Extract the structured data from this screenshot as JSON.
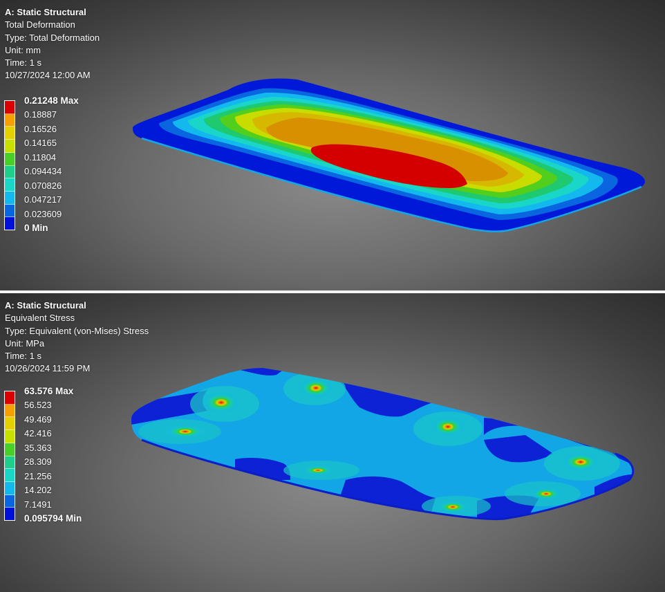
{
  "panels": [
    {
      "analysis": "A: Static Structural",
      "result": "Total Deformation",
      "type": "Type: Total Deformation",
      "unit": "Unit: mm",
      "time": "Time: 1 s",
      "date": "10/27/2024 12:00 AM",
      "legend": [
        "0.21248 Max",
        "0.18887",
        "0.16526",
        "0.14165",
        "0.11804",
        "0.094434",
        "0.070826",
        "0.047217",
        "0.023609",
        "0 Min"
      ]
    },
    {
      "analysis": "A: Static Structural",
      "result": "Equivalent Stress",
      "type": "Type: Equivalent (von-Mises) Stress",
      "unit": "Unit: MPa",
      "time": "Time: 1 s",
      "date": "10/26/2024 11:59 PM",
      "legend": [
        "63.576 Max",
        "56.523",
        "49.469",
        "42.416",
        "35.363",
        "28.309",
        "21.256",
        "14.202",
        "7.1491",
        "0.095794 Min"
      ]
    }
  ],
  "colors": {
    "legend_scale": [
      "#d80000",
      "#f5a000",
      "#e6d000",
      "#c6e000",
      "#46d028",
      "#1dcf8a",
      "#1ad6c8",
      "#12b8ee",
      "#0a66e0",
      "#0010d8"
    ]
  }
}
